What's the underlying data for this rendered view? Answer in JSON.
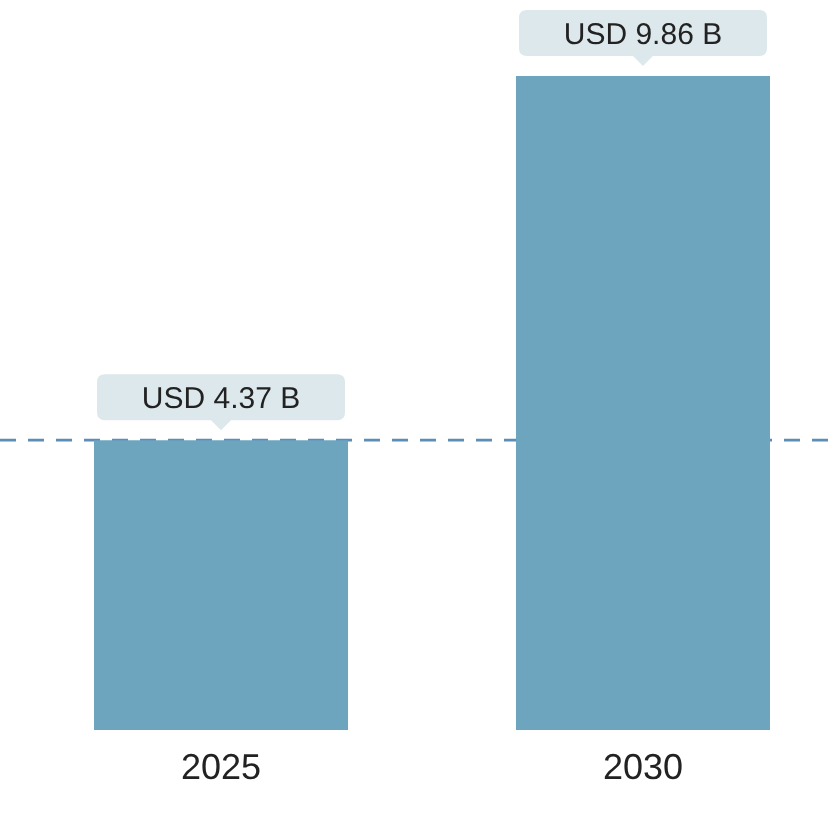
{
  "chart_data": {
    "type": "bar",
    "categories": [
      "2025",
      "2030"
    ],
    "values": [
      4.37,
      9.86
    ],
    "value_labels": [
      "USD 4.37 B",
      "USD 9.86 B"
    ],
    "color": "#6da5bf",
    "ref_lines": [
      {
        "axis": "y",
        "value": 4.37,
        "color": "#5b8db7",
        "line_style": "dashed"
      }
    ],
    "tick_labels": "x"
  }
}
